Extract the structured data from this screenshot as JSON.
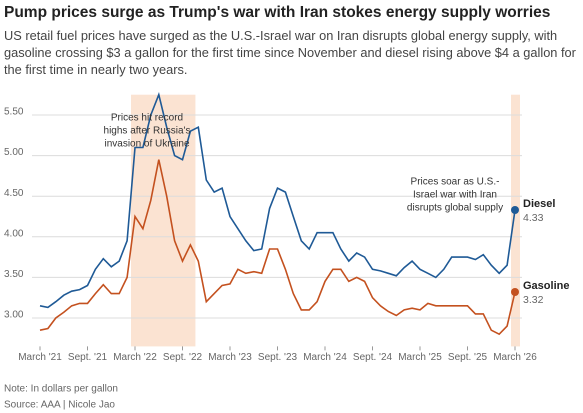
{
  "chart_data": {
    "type": "line",
    "title": "Pump prices surge as Trump's war with Iran stokes energy supply worries",
    "subtitle": "US retail fuel prices have surged as the U.S.-Israel war on Iran disrupts global energy supply, with gasoline crossing $3 a gallon for the first time since November and diesel rising above $4 a gallon for the first time in nearly two years.",
    "x": [
      "2021-03",
      "2021-04",
      "2021-05",
      "2021-06",
      "2021-07",
      "2021-08",
      "2021-09",
      "2021-10",
      "2021-11",
      "2021-12",
      "2022-01",
      "2022-02",
      "2022-03",
      "2022-04",
      "2022-05",
      "2022-06",
      "2022-07",
      "2022-08",
      "2022-09",
      "2022-10",
      "2022-11",
      "2022-12",
      "2023-01",
      "2023-02",
      "2023-03",
      "2023-04",
      "2023-05",
      "2023-06",
      "2023-07",
      "2023-08",
      "2023-09",
      "2023-10",
      "2023-11",
      "2023-12",
      "2024-01",
      "2024-02",
      "2024-03",
      "2024-04",
      "2024-05",
      "2024-06",
      "2024-07",
      "2024-08",
      "2024-09",
      "2024-10",
      "2024-11",
      "2024-12",
      "2025-01",
      "2025-02",
      "2025-03",
      "2025-04",
      "2025-05",
      "2025-06",
      "2025-07",
      "2025-08",
      "2025-09",
      "2025-10",
      "2025-11",
      "2025-12",
      "2026-01",
      "2026-02",
      "2026-03"
    ],
    "series": [
      {
        "name": "Diesel",
        "color": "#1f5a96",
        "values": [
          3.15,
          3.13,
          3.2,
          3.28,
          3.33,
          3.35,
          3.4,
          3.6,
          3.73,
          3.63,
          3.7,
          3.95,
          5.1,
          5.1,
          5.5,
          5.75,
          5.35,
          5.0,
          4.95,
          5.3,
          5.35,
          4.7,
          4.55,
          4.6,
          4.25,
          4.1,
          3.95,
          3.83,
          3.85,
          4.35,
          4.6,
          4.55,
          4.25,
          3.95,
          3.85,
          4.05,
          4.05,
          4.05,
          3.85,
          3.7,
          3.8,
          3.75,
          3.6,
          3.58,
          3.55,
          3.52,
          3.62,
          3.7,
          3.6,
          3.55,
          3.5,
          3.6,
          3.75,
          3.75,
          3.75,
          3.72,
          3.78,
          3.65,
          3.55,
          3.65,
          4.33
        ]
      },
      {
        "name": "Gasoline",
        "color": "#c4511f",
        "values": [
          2.85,
          2.87,
          3.0,
          3.07,
          3.15,
          3.18,
          3.18,
          3.3,
          3.41,
          3.3,
          3.3,
          3.5,
          4.25,
          4.1,
          4.45,
          4.95,
          4.5,
          3.95,
          3.7,
          3.9,
          3.7,
          3.2,
          3.3,
          3.4,
          3.42,
          3.6,
          3.55,
          3.57,
          3.55,
          3.85,
          3.85,
          3.6,
          3.3,
          3.1,
          3.1,
          3.2,
          3.45,
          3.6,
          3.6,
          3.45,
          3.5,
          3.45,
          3.25,
          3.15,
          3.08,
          3.03,
          3.1,
          3.12,
          3.1,
          3.18,
          3.15,
          3.15,
          3.15,
          3.15,
          3.15,
          3.05,
          3.05,
          2.85,
          2.8,
          2.9,
          3.32
        ]
      }
    ],
    "ylim": [
      2.65,
      5.75
    ],
    "yticks": [
      {
        "value": 3,
        "label": "3.00"
      },
      {
        "value": 3.5,
        "label": "3.50"
      },
      {
        "value": 4,
        "label": "4.00"
      },
      {
        "value": 4.5,
        "label": "4.50"
      },
      {
        "value": 5,
        "label": "5.00"
      },
      {
        "value": 5.5,
        "label": "5.50"
      }
    ],
    "xticks": [
      {
        "value": "2021-03",
        "label": "March '21"
      },
      {
        "value": "2021-09",
        "label": "Sept. '21"
      },
      {
        "value": "2022-03",
        "label": "March '22"
      },
      {
        "value": "2022-09",
        "label": "Sept. '22"
      },
      {
        "value": "2023-03",
        "label": "March '23"
      },
      {
        "value": "2023-09",
        "label": "Sept. '23"
      },
      {
        "value": "2024-03",
        "label": "March '24"
      },
      {
        "value": "2024-09",
        "label": "Sept. '24"
      },
      {
        "value": "2025-03",
        "label": "March '25"
      },
      {
        "value": "2025-09",
        "label": "Sept. '25"
      },
      {
        "value": "2026-03",
        "label": "March '26"
      }
    ],
    "grid": true,
    "shaded_periods": [
      {
        "from": "2022-03",
        "to": "2022-10"
      },
      {
        "from": "2026-03",
        "to": "2026-03"
      }
    ],
    "annotations": [
      {
        "lines": [
          "Prices hit record",
          "highs after Russia's",
          "invasion of Ukraine"
        ]
      },
      {
        "lines": [
          "Prices soar as U.S.-",
          "Israel war with Iran",
          "disrupts global supply"
        ]
      }
    ],
    "note": "Note: In dollars per gallon",
    "source": "Source: AAA | Nicole Jao"
  }
}
